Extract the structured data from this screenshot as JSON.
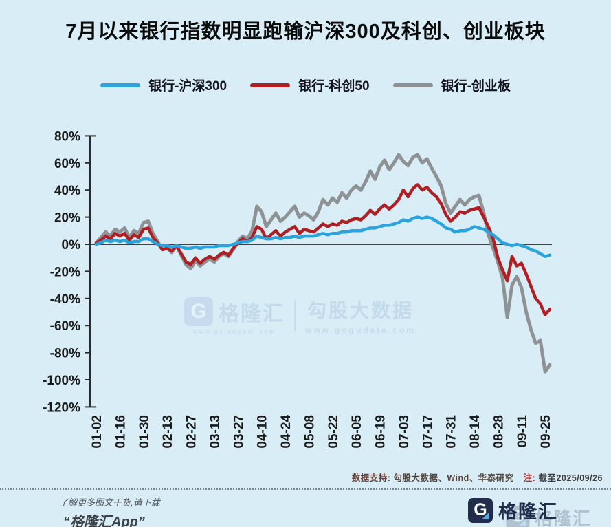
{
  "title": "7月以来银行指数明显跑输沪深300及科创、创业板块",
  "legend": [
    {
      "label": "银行-沪深300",
      "color": "#2BA3DC"
    },
    {
      "label": "银行-科创50",
      "color": "#AF1F24"
    },
    {
      "label": "银行-创业板",
      "color": "#8E9294"
    }
  ],
  "colors": {
    "background": "#D9EDF7",
    "axis": "#2b2b2b",
    "zero_line": "#3d4043",
    "tick_text": "#1a1a1a"
  },
  "note": {
    "support_label": "数据支持:",
    "sources": "勾股大数据、Wind、华泰研究",
    "note_label": "注:",
    "note_value": "截至2025/09/26"
  },
  "watermark": {
    "brand_initial": "G",
    "brand": "格隆汇",
    "brand_url": "www.gelonghui.com",
    "product": "勾股大数据",
    "product_url": "www.gogudata.com"
  },
  "footer": {
    "line1": "了解更多图文干货,请下载",
    "line2": "“格隆汇App”",
    "brand_initial": "G",
    "brand": "格隆汇"
  },
  "chart_data": {
    "type": "line",
    "title": "7月以来银行指数明显跑输沪深300及科创、创业板块",
    "y_unit": "%",
    "ylim": [
      -120,
      80
    ],
    "y_ticks": [
      80,
      60,
      40,
      20,
      0,
      -20,
      -40,
      -60,
      -80,
      -100,
      -120
    ],
    "x_tick_labels": [
      "01-02",
      "01-16",
      "01-30",
      "02-13",
      "02-27",
      "03-13",
      "03-27",
      "04-10",
      "04-24",
      "05-08",
      "05-22",
      "06-05",
      "06-19",
      "07-03",
      "07-17",
      "07-31",
      "08-14",
      "08-28",
      "09-11",
      "09-25"
    ],
    "points_per_tick_interval": 5,
    "legend_position": "top",
    "grid": false,
    "series": [
      {
        "name": "银行-创业板",
        "color": "#8E9294",
        "width": 5,
        "values": [
          1,
          5,
          9,
          6,
          11,
          9,
          12,
          5,
          10,
          8,
          16,
          17,
          8,
          2,
          -4,
          -3,
          -6,
          -1,
          -8,
          -15,
          -18,
          -12,
          -16,
          -13,
          -11,
          -13,
          -9,
          -7,
          -9,
          -4,
          2,
          6,
          4,
          10,
          28,
          24,
          13,
          18,
          23,
          17,
          20,
          24,
          28,
          20,
          23,
          21,
          18,
          24,
          33,
          29,
          34,
          31,
          38,
          34,
          40,
          43,
          40,
          46,
          54,
          48,
          57,
          62,
          55,
          60,
          66,
          61,
          58,
          64,
          66,
          60,
          63,
          56,
          50,
          43,
          30,
          23,
          28,
          33,
          29,
          33,
          35,
          36,
          23,
          7,
          -3,
          -13,
          -25,
          -54,
          -30,
          -24,
          -32,
          -50,
          -63,
          -73,
          -71,
          -94,
          -89
        ]
      },
      {
        "name": "银行-科创50",
        "color": "#AF1F24",
        "width": 4.5,
        "values": [
          1,
          3,
          6,
          4,
          8,
          6,
          8,
          3,
          7,
          5,
          11,
          12,
          5,
          1,
          -4,
          -3,
          -5,
          -1,
          -7,
          -13,
          -15,
          -10,
          -14,
          -11,
          -9,
          -11,
          -8,
          -6,
          -8,
          -3,
          1,
          4,
          2,
          5,
          13,
          11,
          4,
          7,
          10,
          6,
          9,
          11,
          13,
          8,
          11,
          10,
          9,
          12,
          15,
          13,
          15,
          14,
          17,
          16,
          18,
          19,
          18,
          21,
          25,
          22,
          26,
          29,
          26,
          29,
          33,
          40,
          35,
          41,
          44,
          40,
          42,
          38,
          35,
          30,
          22,
          17,
          20,
          24,
          23,
          25,
          26,
          27,
          20,
          13,
          4,
          -10,
          -19,
          -27,
          -9,
          -16,
          -14,
          -22,
          -31,
          -40,
          -44,
          -52,
          -48
        ]
      },
      {
        "name": "银行-沪深300",
        "color": "#2BA3DC",
        "width": 4.5,
        "values": [
          0,
          1,
          3,
          2,
          3,
          2,
          3,
          1,
          2,
          2,
          4,
          4,
          2,
          0,
          -1,
          -1,
          -2,
          -1,
          -2,
          -3,
          -3,
          -2,
          -3,
          -2,
          -2,
          -2,
          -1,
          -1,
          -1,
          0,
          1,
          2,
          2,
          3,
          6,
          5,
          4,
          4,
          5,
          4,
          5,
          5,
          6,
          5,
          6,
          6,
          6,
          7,
          8,
          7,
          8,
          8,
          9,
          9,
          10,
          10,
          10,
          11,
          12,
          12,
          13,
          14,
          14,
          15,
          16,
          18,
          17,
          19,
          20,
          19,
          20,
          19,
          17,
          15,
          12,
          11,
          9,
          10,
          10,
          11,
          13,
          12,
          11,
          9,
          7,
          4,
          1,
          0,
          -1,
          0,
          -1,
          -2,
          -4,
          -5,
          -7,
          -9,
          -8
        ]
      }
    ]
  }
}
